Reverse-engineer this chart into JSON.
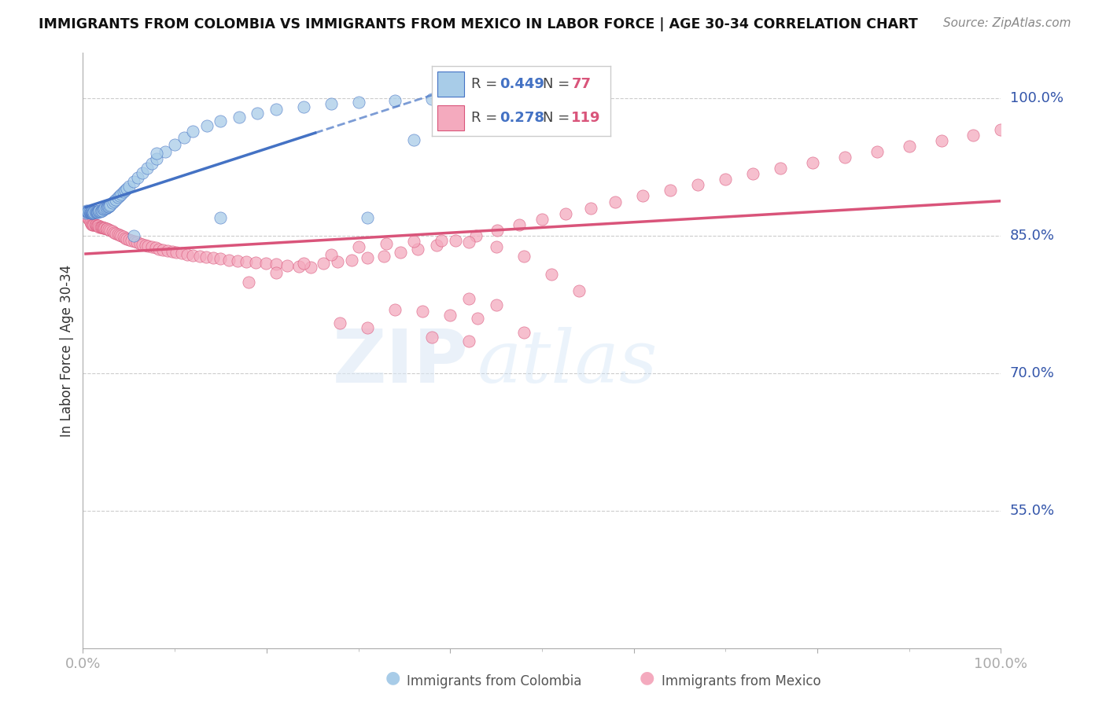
{
  "title": "IMMIGRANTS FROM COLOMBIA VS IMMIGRANTS FROM MEXICO IN LABOR FORCE | AGE 30-34 CORRELATION CHART",
  "source": "Source: ZipAtlas.com",
  "ylabel": "In Labor Force | Age 30-34",
  "ylabel_tick_vals": [
    0.55,
    0.7,
    0.85,
    1.0
  ],
  "ylabel_tick_labels": [
    "55.0%",
    "70.0%",
    "85.0%",
    "100.0%"
  ],
  "xlim": [
    0.0,
    1.0
  ],
  "ylim": [
    0.4,
    1.05
  ],
  "colombia_color": "#a8cce8",
  "mexico_color": "#f4aabe",
  "colombia_line_color": "#4472c4",
  "mexico_line_color": "#d9547a",
  "colombia_R": 0.449,
  "colombia_N": 77,
  "mexico_R": 0.278,
  "mexico_N": 119,
  "colombia_x": [
    0.003,
    0.004,
    0.005,
    0.005,
    0.006,
    0.006,
    0.007,
    0.007,
    0.008,
    0.008,
    0.009,
    0.009,
    0.01,
    0.01,
    0.01,
    0.011,
    0.011,
    0.012,
    0.012,
    0.013,
    0.014,
    0.015,
    0.015,
    0.016,
    0.016,
    0.017,
    0.018,
    0.018,
    0.019,
    0.02,
    0.021,
    0.022,
    0.023,
    0.024,
    0.025,
    0.026,
    0.027,
    0.028,
    0.029,
    0.03,
    0.032,
    0.034,
    0.036,
    0.038,
    0.04,
    0.042,
    0.044,
    0.046,
    0.048,
    0.05,
    0.055,
    0.06,
    0.065,
    0.07,
    0.075,
    0.08,
    0.09,
    0.1,
    0.11,
    0.12,
    0.135,
    0.15,
    0.17,
    0.19,
    0.21,
    0.24,
    0.27,
    0.3,
    0.34,
    0.38,
    0.42,
    0.46,
    0.31,
    0.36,
    0.15,
    0.08,
    0.055
  ],
  "colombia_y": [
    0.875,
    0.878,
    0.876,
    0.877,
    0.876,
    0.877,
    0.876,
    0.877,
    0.875,
    0.876,
    0.875,
    0.876,
    0.875,
    0.876,
    0.877,
    0.875,
    0.876,
    0.877,
    0.876,
    0.877,
    0.876,
    0.876,
    0.877,
    0.877,
    0.876,
    0.877,
    0.877,
    0.878,
    0.877,
    0.878,
    0.878,
    0.879,
    0.879,
    0.88,
    0.88,
    0.881,
    0.882,
    0.882,
    0.883,
    0.884,
    0.886,
    0.888,
    0.89,
    0.892,
    0.894,
    0.896,
    0.898,
    0.9,
    0.902,
    0.904,
    0.909,
    0.914,
    0.919,
    0.924,
    0.929,
    0.934,
    0.942,
    0.95,
    0.957,
    0.964,
    0.97,
    0.975,
    0.98,
    0.984,
    0.988,
    0.991,
    0.994,
    0.996,
    0.998,
    0.999,
    1.0,
    1.0,
    0.87,
    0.955,
    0.87,
    0.94,
    0.85
  ],
  "mexico_x": [
    0.003,
    0.004,
    0.005,
    0.006,
    0.007,
    0.008,
    0.009,
    0.01,
    0.011,
    0.012,
    0.013,
    0.014,
    0.015,
    0.016,
    0.017,
    0.018,
    0.019,
    0.02,
    0.021,
    0.022,
    0.023,
    0.024,
    0.025,
    0.026,
    0.028,
    0.03,
    0.032,
    0.034,
    0.036,
    0.038,
    0.04,
    0.042,
    0.044,
    0.046,
    0.048,
    0.05,
    0.053,
    0.056,
    0.059,
    0.062,
    0.065,
    0.068,
    0.071,
    0.075,
    0.079,
    0.083,
    0.087,
    0.092,
    0.097,
    0.102,
    0.108,
    0.114,
    0.12,
    0.127,
    0.134,
    0.142,
    0.15,
    0.159,
    0.168,
    0.178,
    0.188,
    0.199,
    0.21,
    0.222,
    0.235,
    0.248,
    0.262,
    0.277,
    0.293,
    0.31,
    0.328,
    0.346,
    0.365,
    0.385,
    0.406,
    0.428,
    0.451,
    0.475,
    0.5,
    0.526,
    0.553,
    0.58,
    0.61,
    0.64,
    0.67,
    0.7,
    0.73,
    0.76,
    0.795,
    0.83,
    0.865,
    0.9,
    0.935,
    0.97,
    1.0,
    0.18,
    0.21,
    0.24,
    0.27,
    0.3,
    0.33,
    0.36,
    0.39,
    0.42,
    0.45,
    0.48,
    0.51,
    0.54,
    0.42,
    0.45,
    0.34,
    0.37,
    0.4,
    0.43,
    0.28,
    0.31,
    0.48,
    0.38,
    0.42
  ],
  "mexico_y": [
    0.875,
    0.873,
    0.871,
    0.869,
    0.867,
    0.865,
    0.863,
    0.862,
    0.862,
    0.862,
    0.862,
    0.862,
    0.861,
    0.861,
    0.861,
    0.86,
    0.86,
    0.86,
    0.86,
    0.859,
    0.859,
    0.859,
    0.858,
    0.858,
    0.857,
    0.856,
    0.855,
    0.854,
    0.853,
    0.852,
    0.851,
    0.85,
    0.849,
    0.848,
    0.847,
    0.846,
    0.845,
    0.844,
    0.843,
    0.842,
    0.841,
    0.84,
    0.839,
    0.838,
    0.837,
    0.836,
    0.835,
    0.834,
    0.833,
    0.832,
    0.831,
    0.83,
    0.829,
    0.828,
    0.827,
    0.826,
    0.825,
    0.824,
    0.823,
    0.822,
    0.821,
    0.82,
    0.819,
    0.818,
    0.817,
    0.816,
    0.82,
    0.822,
    0.824,
    0.826,
    0.828,
    0.832,
    0.836,
    0.84,
    0.845,
    0.85,
    0.856,
    0.862,
    0.868,
    0.874,
    0.88,
    0.887,
    0.894,
    0.9,
    0.906,
    0.912,
    0.918,
    0.924,
    0.93,
    0.936,
    0.942,
    0.948,
    0.954,
    0.96,
    0.966,
    0.8,
    0.81,
    0.82,
    0.83,
    0.838,
    0.842,
    0.844,
    0.845,
    0.843,
    0.838,
    0.828,
    0.808,
    0.79,
    0.782,
    0.775,
    0.77,
    0.768,
    0.764,
    0.76,
    0.755,
    0.75,
    0.745,
    0.74,
    0.735
  ]
}
